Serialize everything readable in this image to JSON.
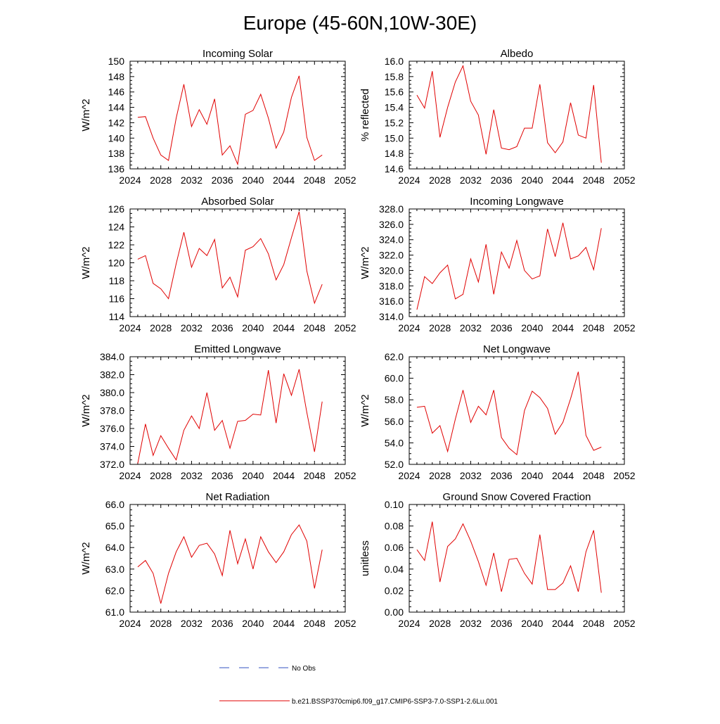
{
  "figure": {
    "title": "Europe (45-60N,10W-30E)"
  },
  "colors": {
    "model_line": "#e00000",
    "obs_line": "#3050c0",
    "axis": "#000000"
  },
  "legend": {
    "obs_label": "No Obs",
    "model_label": "b.e21.BSSP370cmip6.f09_g17.CMIP6-SSP3-7.0-SSP1-2.6Lu.001"
  },
  "chart_data": [
    {
      "type": "line",
      "title": "Incoming Solar",
      "xlabel": "",
      "ylabel": "W/m^2",
      "xlim": [
        2024,
        2052
      ],
      "ylim": [
        136,
        150
      ],
      "xticks": [
        2024,
        2028,
        2032,
        2036,
        2040,
        2044,
        2048,
        2052
      ],
      "yticks": [
        136,
        138,
        140,
        142,
        144,
        146,
        148,
        150
      ],
      "ytick_decimals": 0,
      "x": [
        2025,
        2026,
        2027,
        2028,
        2029,
        2030,
        2031,
        2032,
        2033,
        2034,
        2035,
        2036,
        2037,
        2038,
        2039,
        2040,
        2041,
        2042,
        2043,
        2044,
        2045,
        2046,
        2047,
        2048,
        2049
      ],
      "series": [
        {
          "values": [
            142.7,
            142.8,
            140.0,
            137.8,
            137.1,
            142.6,
            147.0,
            141.5,
            143.7,
            141.8,
            145.1,
            137.8,
            139.0,
            136.6,
            143.1,
            143.6,
            145.7,
            142.6,
            138.7,
            140.8,
            145.3,
            148.1,
            140.1,
            137.1,
            137.8
          ]
        }
      ],
      "grid": false
    },
    {
      "type": "line",
      "title": "Albedo",
      "xlabel": "",
      "ylabel": "% reflected",
      "xlim": [
        2024,
        2052
      ],
      "ylim": [
        14.6,
        16.0
      ],
      "xticks": [
        2024,
        2028,
        2032,
        2036,
        2040,
        2044,
        2048,
        2052
      ],
      "yticks": [
        14.6,
        14.8,
        15.0,
        15.2,
        15.4,
        15.6,
        15.8,
        16.0
      ],
      "ytick_decimals": 1,
      "x": [
        2025,
        2026,
        2027,
        2028,
        2029,
        2030,
        2031,
        2032,
        2033,
        2034,
        2035,
        2036,
        2037,
        2038,
        2039,
        2040,
        2041,
        2042,
        2043,
        2044,
        2045,
        2046,
        2047,
        2048,
        2049
      ],
      "series": [
        {
          "values": [
            15.56,
            15.39,
            15.87,
            15.01,
            15.4,
            15.73,
            15.94,
            15.48,
            15.3,
            14.79,
            15.37,
            14.87,
            14.85,
            14.89,
            15.13,
            15.13,
            15.7,
            14.94,
            14.81,
            14.95,
            15.46,
            15.04,
            15.0,
            15.69,
            14.68
          ]
        }
      ],
      "grid": false
    },
    {
      "type": "line",
      "title": "Absorbed Solar",
      "xlabel": "",
      "ylabel": "W/m^2",
      "xlim": [
        2024,
        2052
      ],
      "ylim": [
        114,
        126
      ],
      "xticks": [
        2024,
        2028,
        2032,
        2036,
        2040,
        2044,
        2048,
        2052
      ],
      "yticks": [
        114,
        116,
        118,
        120,
        122,
        124,
        126
      ],
      "ytick_decimals": 0,
      "x": [
        2025,
        2026,
        2027,
        2028,
        2029,
        2030,
        2031,
        2032,
        2033,
        2034,
        2035,
        2036,
        2037,
        2038,
        2039,
        2040,
        2041,
        2042,
        2043,
        2044,
        2045,
        2046,
        2047,
        2048,
        2049
      ],
      "series": [
        {
          "values": [
            120.4,
            120.8,
            117.7,
            117.1,
            116.0,
            119.9,
            123.4,
            119.5,
            121.6,
            120.8,
            122.6,
            117.2,
            118.4,
            116.2,
            121.4,
            121.8,
            122.7,
            121.0,
            118.1,
            119.8,
            122.8,
            125.7,
            119.1,
            115.5,
            117.6
          ]
        }
      ],
      "grid": false
    },
    {
      "type": "line",
      "title": "Incoming Longwave",
      "xlabel": "",
      "ylabel": "W/m^2",
      "xlim": [
        2024,
        2052
      ],
      "ylim": [
        314,
        328
      ],
      "xticks": [
        2024,
        2028,
        2032,
        2036,
        2040,
        2044,
        2048,
        2052
      ],
      "yticks": [
        314,
        316,
        318,
        320,
        322,
        324,
        326,
        328
      ],
      "ytick_decimals": 1,
      "x": [
        2025,
        2026,
        2027,
        2028,
        2029,
        2030,
        2031,
        2032,
        2033,
        2034,
        2035,
        2036,
        2037,
        2038,
        2039,
        2040,
        2041,
        2042,
        2043,
        2044,
        2045,
        2046,
        2047,
        2048,
        2049
      ],
      "series": [
        {
          "values": [
            314.9,
            319.2,
            318.3,
            319.7,
            320.7,
            316.3,
            316.9,
            321.5,
            318.5,
            323.4,
            316.9,
            322.4,
            320.3,
            323.9,
            320.0,
            318.9,
            319.3,
            325.4,
            321.8,
            326.2,
            321.5,
            321.9,
            323.0,
            320.1,
            325.5
          ]
        }
      ],
      "grid": false
    },
    {
      "type": "line",
      "title": "Emitted Longwave",
      "xlabel": "",
      "ylabel": "W/m^2",
      "xlim": [
        2024,
        2052
      ],
      "ylim": [
        372,
        384
      ],
      "xticks": [
        2024,
        2028,
        2032,
        2036,
        2040,
        2044,
        2048,
        2052
      ],
      "yticks": [
        372,
        374,
        376,
        378,
        380,
        382,
        384
      ],
      "ytick_decimals": 1,
      "x": [
        2025,
        2026,
        2027,
        2028,
        2029,
        2030,
        2031,
        2032,
        2033,
        2034,
        2035,
        2036,
        2037,
        2038,
        2039,
        2040,
        2041,
        2042,
        2043,
        2044,
        2045,
        2046,
        2047,
        2048,
        2049
      ],
      "series": [
        {
          "values": [
            372.1,
            376.5,
            373.0,
            375.2,
            373.8,
            372.5,
            375.8,
            377.4,
            376.0,
            380.0,
            375.8,
            376.9,
            373.8,
            376.8,
            376.9,
            377.6,
            377.5,
            382.5,
            376.6,
            382.1,
            379.7,
            382.6,
            377.8,
            373.4,
            379.0
          ]
        }
      ],
      "grid": false
    },
    {
      "type": "line",
      "title": "Net Longwave",
      "xlabel": "",
      "ylabel": "W/m^2",
      "xlim": [
        2024,
        2052
      ],
      "ylim": [
        52,
        62
      ],
      "xticks": [
        2024,
        2028,
        2032,
        2036,
        2040,
        2044,
        2048,
        2052
      ],
      "yticks": [
        52,
        54,
        56,
        58,
        60,
        62
      ],
      "ytick_decimals": 1,
      "x": [
        2025,
        2026,
        2027,
        2028,
        2029,
        2030,
        2031,
        2032,
        2033,
        2034,
        2035,
        2036,
        2037,
        2038,
        2039,
        2040,
        2041,
        2042,
        2043,
        2044,
        2045,
        2046,
        2047,
        2048,
        2049
      ],
      "series": [
        {
          "values": [
            57.3,
            57.4,
            54.9,
            55.6,
            53.2,
            56.2,
            58.9,
            55.9,
            57.4,
            56.6,
            58.9,
            54.5,
            53.5,
            52.9,
            57.0,
            58.8,
            58.2,
            57.2,
            54.8,
            55.9,
            58.1,
            60.6,
            54.7,
            53.3,
            53.6
          ]
        }
      ],
      "grid": false
    },
    {
      "type": "line",
      "title": "Net Radiation",
      "xlabel": "",
      "ylabel": "W/m^2",
      "xlim": [
        2024,
        2052
      ],
      "ylim": [
        61,
        66
      ],
      "xticks": [
        2024,
        2028,
        2032,
        2036,
        2040,
        2044,
        2048,
        2052
      ],
      "yticks": [
        61,
        62,
        63,
        64,
        65,
        66
      ],
      "ytick_decimals": 1,
      "x": [
        2025,
        2026,
        2027,
        2028,
        2029,
        2030,
        2031,
        2032,
        2033,
        2034,
        2035,
        2036,
        2037,
        2038,
        2039,
        2040,
        2041,
        2042,
        2043,
        2044,
        2045,
        2046,
        2047,
        2048,
        2049
      ],
      "series": [
        {
          "values": [
            63.1,
            63.4,
            62.8,
            61.4,
            62.8,
            63.8,
            64.5,
            63.55,
            64.1,
            64.2,
            63.7,
            62.7,
            64.8,
            63.25,
            64.4,
            63.0,
            64.5,
            63.8,
            63.3,
            63.8,
            64.6,
            65.05,
            64.3,
            62.1,
            63.9
          ]
        }
      ],
      "grid": false
    },
    {
      "type": "line",
      "title": "Ground Snow Covered Fraction",
      "xlabel": "",
      "ylabel": "unitless",
      "xlim": [
        2024,
        2052
      ],
      "ylim": [
        0,
        0.1
      ],
      "xticks": [
        2024,
        2028,
        2032,
        2036,
        2040,
        2044,
        2048,
        2052
      ],
      "yticks": [
        0,
        0.02,
        0.04,
        0.06,
        0.08,
        0.1
      ],
      "ytick_decimals": 2,
      "x": [
        2025,
        2026,
        2027,
        2028,
        2029,
        2030,
        2031,
        2032,
        2033,
        2034,
        2035,
        2036,
        2037,
        2038,
        2039,
        2040,
        2041,
        2042,
        2043,
        2044,
        2045,
        2046,
        2047,
        2048,
        2049
      ],
      "series": [
        {
          "values": [
            0.058,
            0.048,
            0.084,
            0.028,
            0.061,
            0.068,
            0.082,
            0.066,
            0.047,
            0.025,
            0.055,
            0.019,
            0.049,
            0.05,
            0.036,
            0.026,
            0.072,
            0.021,
            0.021,
            0.027,
            0.043,
            0.019,
            0.056,
            0.076,
            0.018
          ]
        }
      ],
      "grid": false
    }
  ]
}
